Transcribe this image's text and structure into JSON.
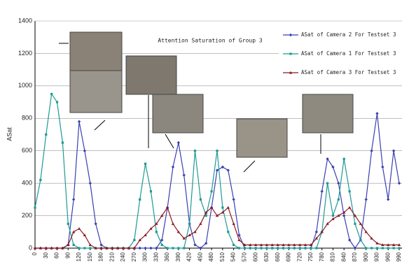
{
  "chart_data": {
    "type": "line",
    "title": "Attention Saturation of Group 3",
    "y_label": "ASat",
    "x": [
      0,
      15,
      30,
      45,
      60,
      75,
      90,
      105,
      120,
      135,
      150,
      165,
      180,
      195,
      210,
      225,
      240,
      255,
      270,
      285,
      300,
      315,
      330,
      345,
      360,
      375,
      390,
      405,
      420,
      435,
      450,
      465,
      480,
      495,
      510,
      525,
      540,
      555,
      570,
      585,
      600,
      615,
      630,
      645,
      660,
      675,
      690,
      705,
      720,
      735,
      750,
      765,
      780,
      795,
      810,
      825,
      840,
      855,
      870,
      885,
      900,
      915,
      930,
      945,
      960,
      975,
      990
    ],
    "series": [
      {
        "name": "ASat of Camera 2 For Testset 3",
        "color": "#3a3fb0",
        "values": [
          0,
          0,
          0,
          0,
          0,
          0,
          20,
          300,
          780,
          600,
          400,
          150,
          20,
          0,
          0,
          0,
          0,
          0,
          0,
          0,
          0,
          0,
          0,
          50,
          250,
          500,
          650,
          450,
          150,
          20,
          0,
          30,
          250,
          480,
          500,
          480,
          300,
          80,
          0,
          0,
          0,
          0,
          0,
          0,
          0,
          0,
          0,
          0,
          0,
          0,
          0,
          100,
          350,
          550,
          500,
          400,
          200,
          50,
          0,
          50,
          300,
          600,
          830,
          500,
          300,
          600,
          400
        ]
      },
      {
        "name": "ASat of Camera 1 For Testset 3",
        "color": "#1f9a93",
        "values": [
          250,
          420,
          700,
          950,
          900,
          650,
          150,
          20,
          0,
          0,
          0,
          0,
          0,
          0,
          0,
          0,
          0,
          0,
          50,
          300,
          520,
          350,
          100,
          20,
          0,
          0,
          0,
          0,
          150,
          600,
          300,
          200,
          350,
          600,
          250,
          100,
          20,
          0,
          0,
          0,
          0,
          0,
          0,
          0,
          0,
          0,
          0,
          0,
          0,
          0,
          0,
          0,
          100,
          400,
          200,
          300,
          550,
          350,
          150,
          50,
          0,
          0,
          0,
          0,
          0,
          0,
          0
        ]
      },
      {
        "name": "ASat of Camera 3 For Testset 3",
        "color": "#8b1a22",
        "values": [
          0,
          0,
          0,
          0,
          0,
          0,
          20,
          100,
          120,
          80,
          20,
          0,
          0,
          0,
          0,
          0,
          0,
          0,
          0,
          50,
          80,
          120,
          150,
          200,
          250,
          150,
          100,
          60,
          80,
          100,
          150,
          220,
          250,
          200,
          220,
          250,
          150,
          50,
          20,
          20,
          20,
          20,
          20,
          20,
          20,
          20,
          20,
          20,
          20,
          20,
          20,
          60,
          100,
          150,
          180,
          200,
          220,
          250,
          200,
          150,
          100,
          60,
          30,
          20,
          20,
          20,
          20
        ]
      }
    ],
    "xlim": [
      0,
      990
    ],
    "ylim": [
      0,
      1400
    ],
    "xticks": [
      0,
      30,
      60,
      90,
      120,
      150,
      180,
      210,
      240,
      270,
      300,
      330,
      360,
      390,
      420,
      450,
      480,
      510,
      540,
      570,
      600,
      630,
      660,
      690,
      720,
      750,
      780,
      810,
      840,
      870,
      900,
      930,
      960,
      990
    ],
    "yticks": [
      0,
      200,
      400,
      600,
      800,
      1000,
      1200,
      1400
    ],
    "grid": true
  }
}
